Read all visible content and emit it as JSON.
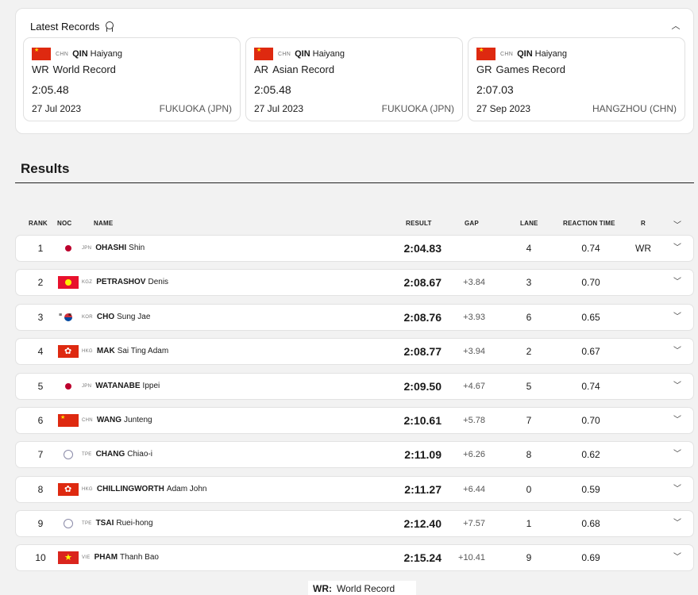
{
  "records": {
    "title": "Latest Records",
    "cards": [
      {
        "noc": "CHN",
        "last": "QIN",
        "first": "Haiyang",
        "code": "WR",
        "label": "World Record",
        "time": "2:05.48",
        "date": "27 Jul 2023",
        "place": "FUKUOKA (JPN)"
      },
      {
        "noc": "CHN",
        "last": "QIN",
        "first": "Haiyang",
        "code": "AR",
        "label": "Asian Record",
        "time": "2:05.48",
        "date": "27 Jul 2023",
        "place": "FUKUOKA (JPN)"
      },
      {
        "noc": "CHN",
        "last": "QIN",
        "first": "Haiyang",
        "code": "GR",
        "label": "Games Record",
        "time": "2:07.03",
        "date": "27 Sep 2023",
        "place": "HANGZHOU (CHN)"
      }
    ]
  },
  "results": {
    "title": "Results",
    "headers": {
      "rank": "RANK",
      "noc": "NOC",
      "name": "NAME",
      "result": "RESULT",
      "gap": "GAP",
      "lane": "LANE",
      "reaction": "REACTION TIME",
      "r": "R"
    },
    "rows": [
      {
        "rank": "1",
        "noc": "JPN",
        "flag": "jpn",
        "last": "OHASHI",
        "first": "Shin",
        "result": "2:04.83",
        "gap": "",
        "lane": "4",
        "reaction": "0.74",
        "rec": "WR"
      },
      {
        "rank": "2",
        "noc": "KGZ",
        "flag": "kgz",
        "last": "PETRASHOV",
        "first": "Denis",
        "result": "2:08.67",
        "gap": "+3.84",
        "lane": "3",
        "reaction": "0.70",
        "rec": ""
      },
      {
        "rank": "3",
        "noc": "KOR",
        "flag": "kor",
        "last": "CHO",
        "first": "Sung Jae",
        "result": "2:08.76",
        "gap": "+3.93",
        "lane": "6",
        "reaction": "0.65",
        "rec": ""
      },
      {
        "rank": "4",
        "noc": "HKG",
        "flag": "hkg",
        "last": "MAK",
        "first": "Sai Ting Adam",
        "result": "2:08.77",
        "gap": "+3.94",
        "lane": "2",
        "reaction": "0.67",
        "rec": ""
      },
      {
        "rank": "5",
        "noc": "JPN",
        "flag": "jpn",
        "last": "WATANABE",
        "first": "Ippei",
        "result": "2:09.50",
        "gap": "+4.67",
        "lane": "5",
        "reaction": "0.74",
        "rec": ""
      },
      {
        "rank": "6",
        "noc": "CHN",
        "flag": "chn",
        "last": "WANG",
        "first": "Junteng",
        "result": "2:10.61",
        "gap": "+5.78",
        "lane": "7",
        "reaction": "0.70",
        "rec": ""
      },
      {
        "rank": "7",
        "noc": "TPE",
        "flag": "tpe",
        "last": "CHANG",
        "first": "Chiao-i",
        "result": "2:11.09",
        "gap": "+6.26",
        "lane": "8",
        "reaction": "0.62",
        "rec": ""
      },
      {
        "rank": "8",
        "noc": "HKG",
        "flag": "hkg",
        "last": "CHILLINGWORTH",
        "first": "Adam John",
        "result": "2:11.27",
        "gap": "+6.44",
        "lane": "0",
        "reaction": "0.59",
        "rec": ""
      },
      {
        "rank": "9",
        "noc": "TPE",
        "flag": "tpe",
        "last": "TSAI",
        "first": "Ruei-hong",
        "result": "2:12.40",
        "gap": "+7.57",
        "lane": "1",
        "reaction": "0.68",
        "rec": ""
      },
      {
        "rank": "10",
        "noc": "VIE",
        "flag": "vie",
        "last": "PHAM",
        "first": "Thanh Bao",
        "result": "2:15.24",
        "gap": "+10.41",
        "lane": "9",
        "reaction": "0.69",
        "rec": ""
      }
    ]
  },
  "legend": {
    "key": "WR:",
    "value": "World Record"
  },
  "icons": {
    "records_title": "medal-icon",
    "collapse": "chevron-up-icon",
    "row_expand": "chevron-down-icon"
  }
}
